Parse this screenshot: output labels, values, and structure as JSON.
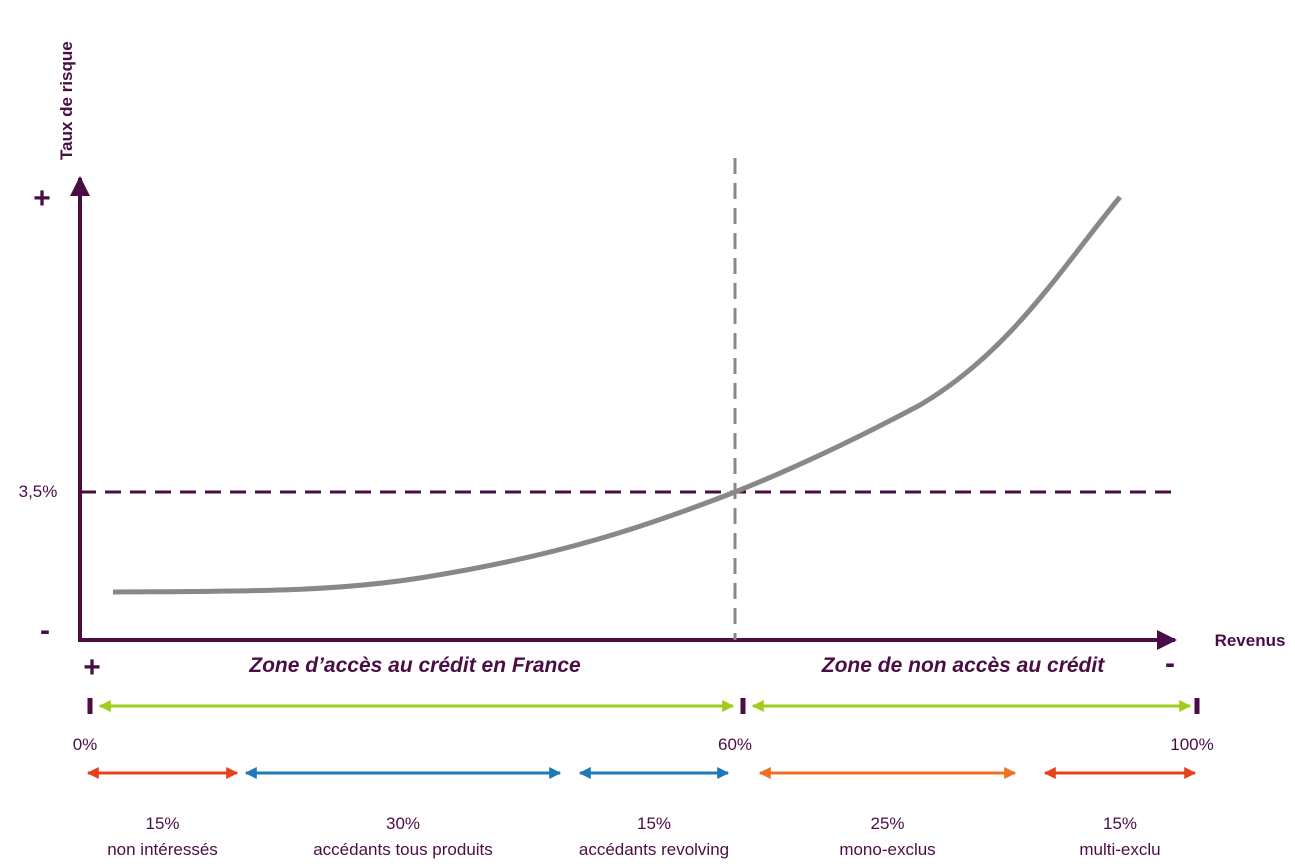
{
  "y_axis": {
    "label": "Taux de risque",
    "top": "+",
    "bottom": "-",
    "threshold": "3,5%"
  },
  "x_axis": {
    "label": "Revenus",
    "left": "+",
    "right": "-"
  },
  "zones": [
    "Zone d’accès au crédit en France",
    "Zone de non accès au crédit"
  ],
  "scale": [
    "0%",
    "60%",
    "100%"
  ],
  "segments": [
    {
      "percent": "15%",
      "label": "non intéressés",
      "color": "#e8401c"
    },
    {
      "percent": "30%",
      "label": "accédants tous produits",
      "color": "#1f78b8"
    },
    {
      "percent": "15%",
      "label": "accédants revolving",
      "color": "#1f78b8"
    },
    {
      "percent": "25%",
      "label": "mono-exclus",
      "color": "#f07020"
    },
    {
      "percent": "15%",
      "label": "multi-exclu",
      "color": "#e8401c"
    }
  ]
}
